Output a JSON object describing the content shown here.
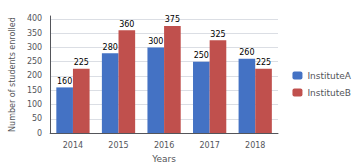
{
  "chart_data": {
    "type": "bar",
    "xlabel": "Years",
    "ylabel": "Number of students enrolled",
    "categories": [
      "2014",
      "2015",
      "2016",
      "2017",
      "2018"
    ],
    "series": [
      {
        "name": "InstituteA",
        "color": "#4472C4",
        "values": [
          160,
          280,
          300,
          250,
          260
        ]
      },
      {
        "name": "InstituteB",
        "color": "#C0504D",
        "values": [
          225,
          360,
          375,
          325,
          225
        ]
      }
    ],
    "ylim": [
      0,
      410
    ],
    "yticks": [
      0,
      50,
      100,
      150,
      200,
      250,
      300,
      350,
      400
    ],
    "grid": true,
    "legend": "right",
    "data_labels": true
  }
}
